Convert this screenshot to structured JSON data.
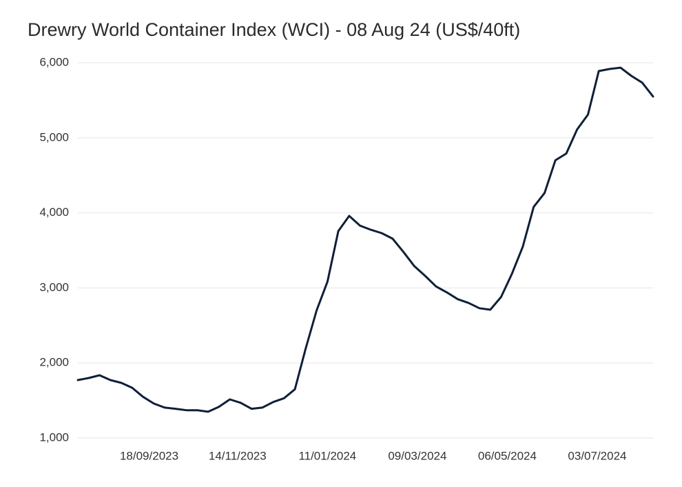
{
  "chart_data": {
    "type": "line",
    "title": "Drewry World Container Index (WCI) - 08 Aug 24 (US$/40ft)",
    "x": [
      "03/08/2023",
      "10/08/2023",
      "17/08/2023",
      "24/08/2023",
      "31/08/2023",
      "07/09/2023",
      "14/09/2023",
      "21/09/2023",
      "28/09/2023",
      "05/10/2023",
      "12/10/2023",
      "19/10/2023",
      "26/10/2023",
      "02/11/2023",
      "09/11/2023",
      "16/11/2023",
      "23/11/2023",
      "30/11/2023",
      "07/12/2023",
      "14/12/2023",
      "21/12/2023",
      "28/12/2023",
      "04/01/2024",
      "11/01/2024",
      "18/01/2024",
      "25/01/2024",
      "01/02/2024",
      "08/02/2024",
      "15/02/2024",
      "22/02/2024",
      "29/02/2024",
      "07/03/2024",
      "14/03/2024",
      "21/03/2024",
      "28/03/2024",
      "04/04/2024",
      "11/04/2024",
      "18/04/2024",
      "25/04/2024",
      "02/05/2024",
      "09/05/2024",
      "16/05/2024",
      "23/05/2024",
      "30/05/2024",
      "06/06/2024",
      "13/06/2024",
      "20/06/2024",
      "27/06/2024",
      "04/07/2024",
      "11/07/2024",
      "18/07/2024",
      "25/07/2024",
      "01/08/2024",
      "08/08/2024"
    ],
    "series": [
      {
        "name": "WCI",
        "color": "#0f1f38",
        "values": [
          1772,
          1800,
          1836,
          1772,
          1735,
          1670,
          1550,
          1460,
          1405,
          1390,
          1370,
          1370,
          1350,
          1415,
          1515,
          1470,
          1390,
          1405,
          1480,
          1530,
          1650,
          2195,
          2700,
          3085,
          3757,
          3960,
          3830,
          3775,
          3730,
          3656,
          3480,
          3290,
          3160,
          3020,
          2940,
          2850,
          2800,
          2730,
          2710,
          2880,
          3190,
          3550,
          4080,
          4265,
          4700,
          4790,
          5110,
          5310,
          5890,
          5917,
          5935,
          5825,
          5735,
          5551
        ]
      }
    ],
    "xlim": [
      "03/08/2023",
      "08/08/2024"
    ],
    "xticks": [
      "18/09/2023",
      "14/11/2023",
      "11/01/2024",
      "09/03/2024",
      "06/05/2024",
      "03/07/2024"
    ],
    "ylim": [
      1000,
      6000
    ],
    "yticks": [
      {
        "value": 1000,
        "label": "1,000"
      },
      {
        "value": 2000,
        "label": "2,000"
      },
      {
        "value": 3000,
        "label": "3,000"
      },
      {
        "value": 4000,
        "label": "4,000"
      },
      {
        "value": 5000,
        "label": "5,000"
      },
      {
        "value": 6000,
        "label": "6,000"
      }
    ],
    "grid": true
  }
}
